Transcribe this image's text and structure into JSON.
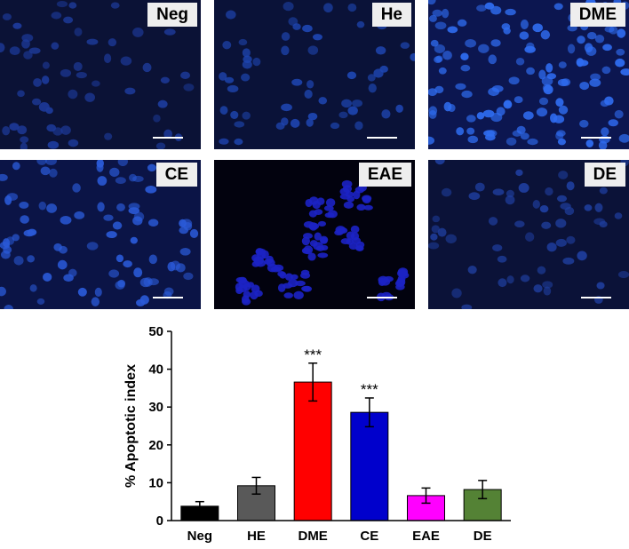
{
  "panels": [
    {
      "label": "Neg",
      "bg": "#0b1236",
      "cell": "#1d3a9a",
      "density": "low"
    },
    {
      "label": "He",
      "bg": "#0a1238",
      "cell": "#1e45b0",
      "density": "low"
    },
    {
      "label": "DME",
      "bg": "#0c1650",
      "cell": "#2f6cf0",
      "density": "high"
    },
    {
      "label": "CE",
      "bg": "#0b1446",
      "cell": "#2a5ad8",
      "density": "medium"
    },
    {
      "label": "EAE",
      "bg": "#02020e",
      "cell": "#1c22c4",
      "density": "clustered"
    },
    {
      "label": "DE",
      "bg": "#0b1238",
      "cell": "#1f3e9e",
      "density": "low"
    }
  ],
  "chart_data": {
    "type": "bar",
    "categories": [
      "Neg",
      "HE",
      "DME",
      "CE",
      "EAE",
      "DE"
    ],
    "values": [
      3.8,
      9.2,
      36.6,
      28.6,
      6.6,
      8.2
    ],
    "errors": [
      1.2,
      2.2,
      5.0,
      3.8,
      2.0,
      2.4
    ],
    "colors": [
      "#000000",
      "#595959",
      "#ff0000",
      "#0000cc",
      "#ff00ff",
      "#548235"
    ],
    "annotations": [
      "",
      "",
      "***",
      "***",
      "",
      ""
    ],
    "xlabel": "",
    "ylabel": "% Apoptotic index",
    "ylim": [
      0,
      50
    ],
    "yticks": [
      0,
      10,
      20,
      30,
      40,
      50
    ],
    "grid": false
  }
}
